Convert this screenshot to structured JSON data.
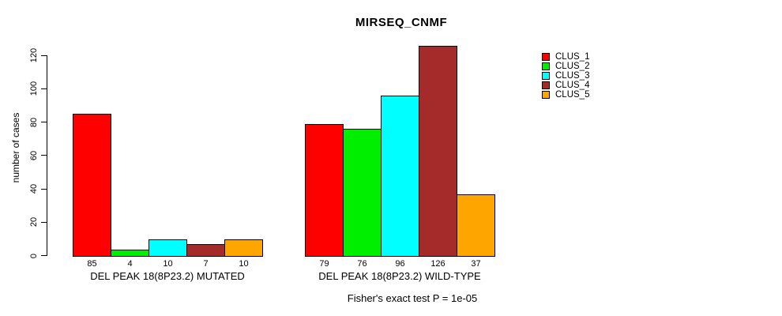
{
  "chart_data": {
    "type": "bar",
    "title": "MIRSEQ_CNMF",
    "ylabel": "number of cases",
    "xlabel": "",
    "ylim": [
      0,
      130
    ],
    "yticks": [
      0,
      20,
      40,
      60,
      80,
      100,
      120
    ],
    "grid": false,
    "legend_position": "right",
    "categories": [
      "DEL PEAK 18(8P23.2) MUTATED",
      "DEL PEAK 18(8P23.2) WILD-TYPE"
    ],
    "series": [
      {
        "name": "CLUS_1",
        "color": "#FF0000",
        "values": [
          85,
          79
        ]
      },
      {
        "name": "CLUS_2",
        "color": "#00EE00",
        "values": [
          4,
          76
        ]
      },
      {
        "name": "CLUS_3",
        "color": "#00FFFF",
        "values": [
          10,
          96
        ]
      },
      {
        "name": "CLUS_4",
        "color": "#A52A2A",
        "values": [
          7,
          126
        ]
      },
      {
        "name": "CLUS_5",
        "color": "#FFA500",
        "values": [
          10,
          37
        ]
      }
    ],
    "value_labels_shown": true,
    "footnote": "Fisher's exact test P = 1e-05",
    "axis_color": "#000000",
    "background_color": "#FFFFFF"
  }
}
